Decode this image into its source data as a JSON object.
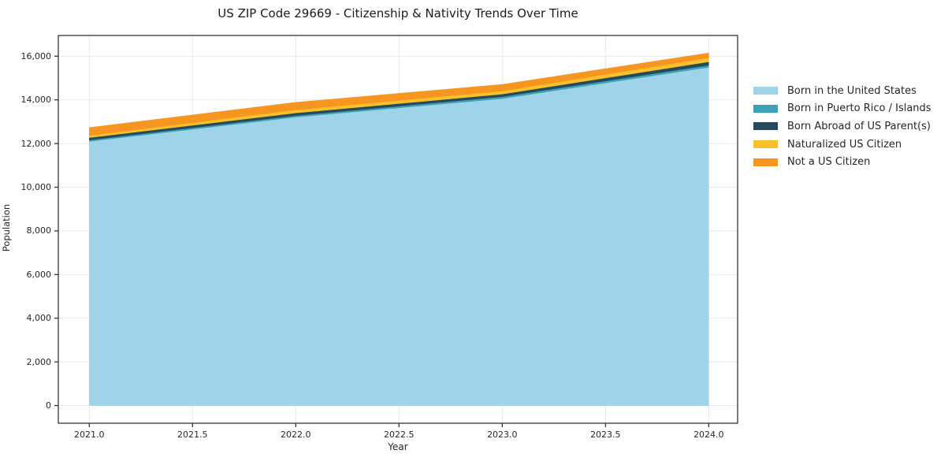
{
  "page": {
    "background": "#ffffff",
    "text_color": "#262626"
  },
  "chart_data": {
    "type": "area",
    "stacked": true,
    "title": "US ZIP Code 29669 - Citizenship & Nativity Trends Over Time",
    "xlabel": "Year",
    "ylabel": "Population",
    "x": [
      2021,
      2022,
      2023,
      2024
    ],
    "series": [
      {
        "name": "Born in the United States",
        "color": "#9FD3E8",
        "values": [
          12100,
          13210,
          14060,
          15490
        ]
      },
      {
        "name": "Born in Puerto Rico / Islands",
        "color": "#3BA1B7",
        "values": [
          60,
          70,
          85,
          95
        ]
      },
      {
        "name": "Born Abroad of US Parent(s)",
        "color": "#254A5E",
        "values": [
          110,
          120,
          120,
          160
        ]
      },
      {
        "name": "Naturalized US Citizen",
        "color": "#FBC12D",
        "values": [
          100,
          145,
          145,
          180
        ]
      },
      {
        "name": "Not a US Citizen",
        "color": "#F6951F",
        "values": [
          365,
          345,
          300,
          225
        ]
      }
    ],
    "stack_totals": [
      12735,
      13890,
      14710,
      16150
    ],
    "xtick_values": [
      2021.0,
      2021.5,
      2022.0,
      2022.5,
      2023.0,
      2023.5,
      2024.0
    ],
    "xtick_labels": [
      "2021.0",
      "2021.5",
      "2022.0",
      "2022.5",
      "2023.0",
      "2023.5",
      "2024.0"
    ],
    "ytick_values": [
      0,
      2000,
      4000,
      6000,
      8000,
      10000,
      12000,
      14000,
      16000
    ],
    "ytick_labels": [
      "0",
      "2,000",
      "4,000",
      "6,000",
      "8,000",
      "10,000",
      "12,000",
      "14,000",
      "16,000"
    ],
    "xlim": [
      2020.85,
      2024.14
    ],
    "ylim": [
      -810,
      16950
    ],
    "grid": true,
    "grid_color": "#e9e9e9",
    "axis_color": "#262626",
    "legend_position": "right"
  }
}
